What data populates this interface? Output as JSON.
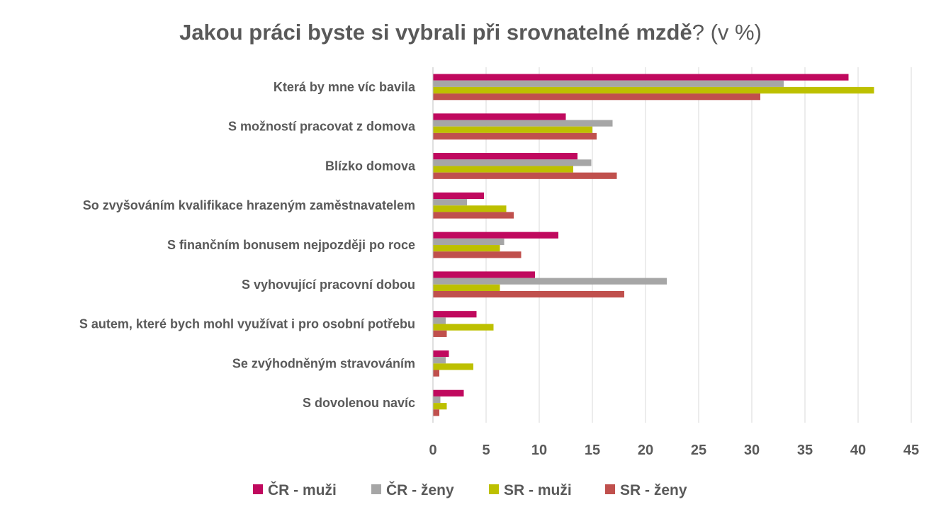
{
  "chart_data": {
    "type": "bar",
    "orientation": "horizontal",
    "title": "Jakou práci byste si vybrali při srovnatelné mzdě",
    "title_suffix": "? (v %)",
    "xlabel": "",
    "ylabel": "",
    "xlim": [
      0,
      45
    ],
    "xticks": [
      0,
      5,
      10,
      15,
      20,
      25,
      30,
      35,
      40,
      45
    ],
    "grid": "vertical",
    "legend_position": "bottom",
    "categories": [
      "Která by  mne víc bavila",
      "S možností pracovat z domova",
      "Blízko domova",
      "So zvyšováním kvalifikace hrazeným zaměstnavatelem",
      "S finančním bonusem nejpozději po roce",
      "S vyhovující pracovní dobou",
      "S autem, které bych mohl využívat i pro osobní potřebu",
      "Se zvýhodněným stravováním",
      "S dovolenou navíc"
    ],
    "series": [
      {
        "name": "ČR - muži",
        "color": "#C0095E",
        "values": [
          39.1,
          12.5,
          13.6,
          4.8,
          11.8,
          9.6,
          4.1,
          1.5,
          2.9
        ]
      },
      {
        "name": "ČR - ženy",
        "color": "#A6A6A6",
        "values": [
          33.0,
          16.9,
          14.9,
          3.2,
          6.7,
          22.0,
          1.2,
          1.2,
          0.7
        ]
      },
      {
        "name": "SR - muži",
        "color": "#BDC000",
        "values": [
          41.5,
          15.0,
          13.2,
          6.9,
          6.3,
          6.3,
          5.7,
          3.8,
          1.3
        ]
      },
      {
        "name": "SR - ženy",
        "color": "#C0504D",
        "values": [
          30.8,
          15.4,
          17.3,
          7.6,
          8.3,
          18.0,
          1.3,
          0.6,
          0.6
        ]
      }
    ]
  }
}
